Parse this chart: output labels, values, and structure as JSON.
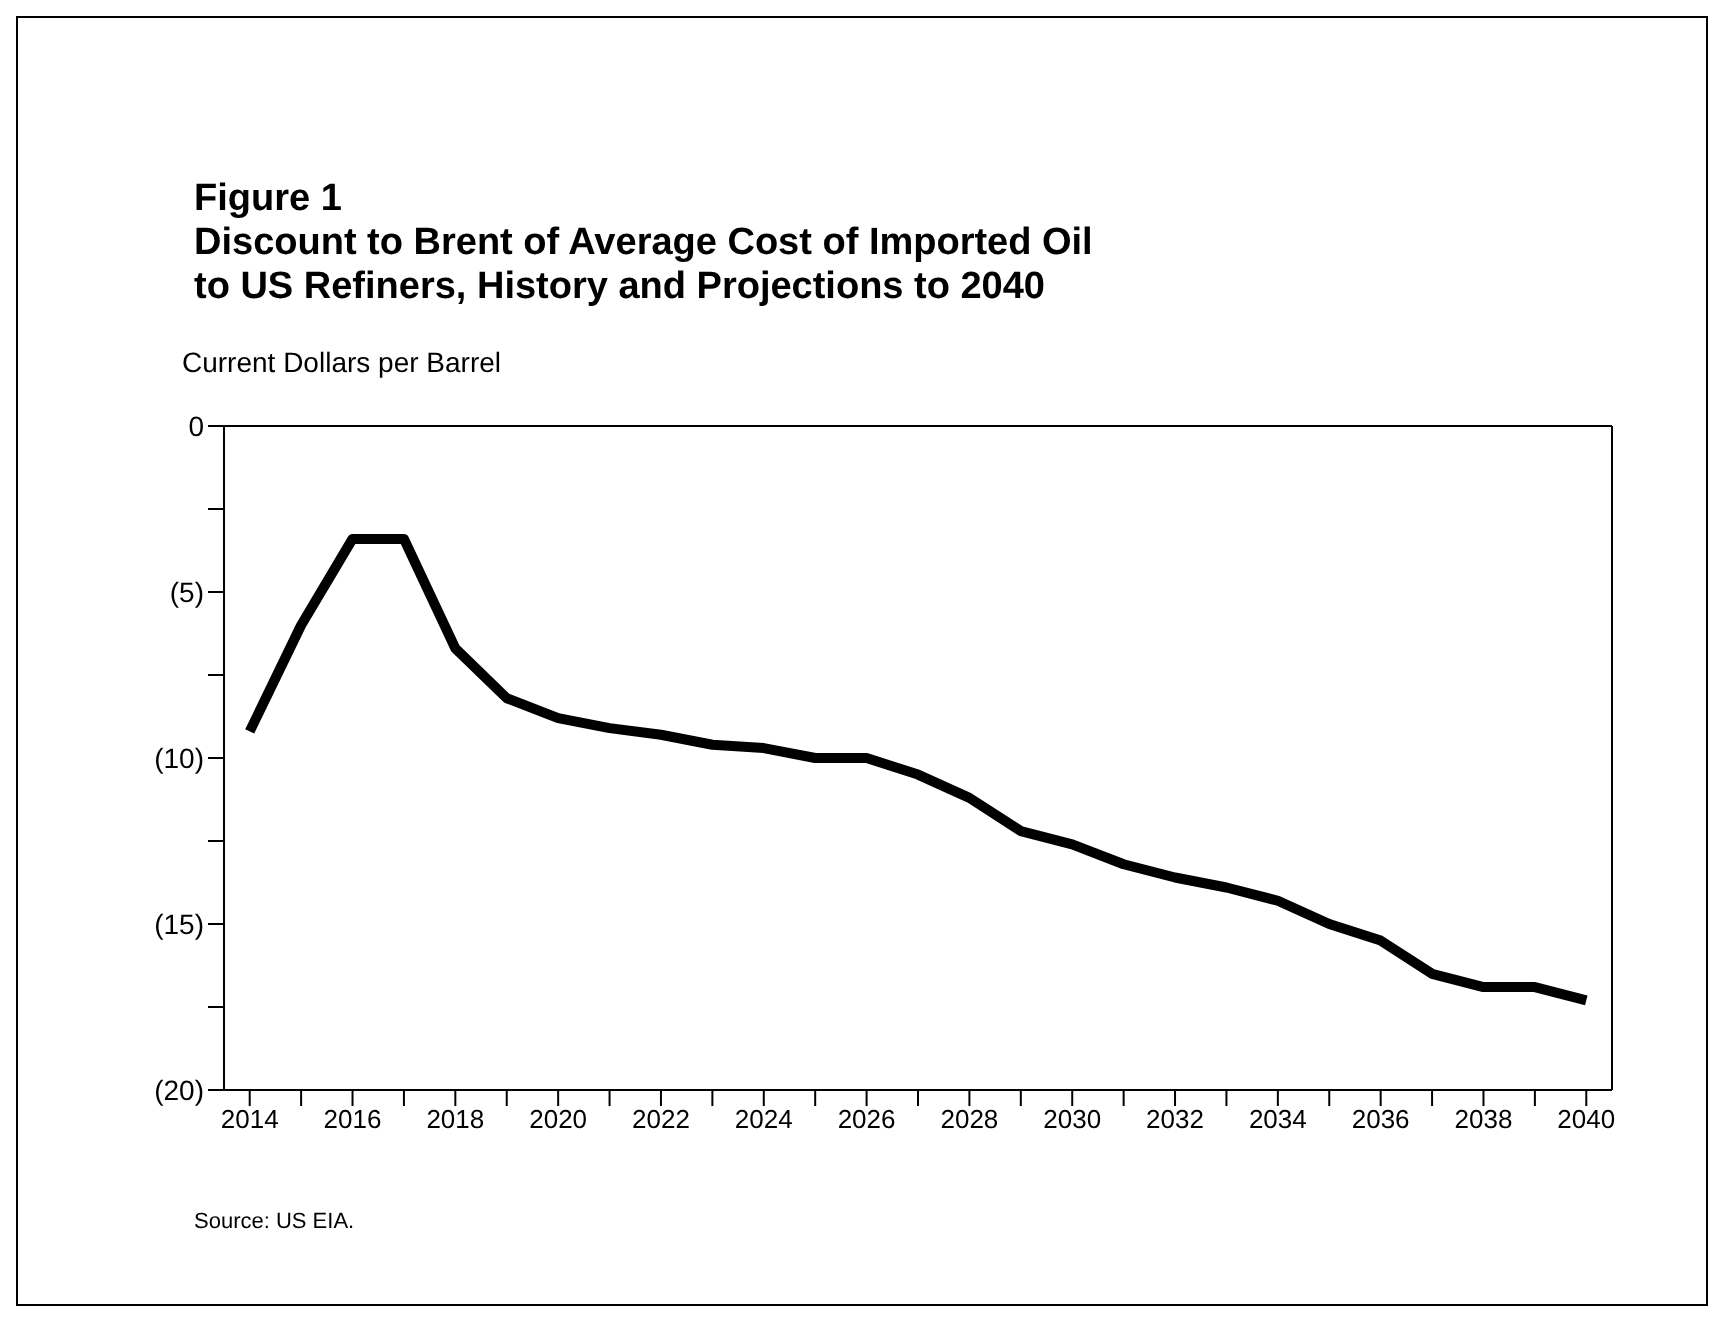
{
  "chart_data": {
    "type": "line",
    "title": "Figure 1\nDiscount to Brent of Average Cost of Imported Oil\nto US Refiners, History and Projections to 2040",
    "ylabel": "Current Dollars per Barrel",
    "annotations": [
      "Source: US EIA."
    ],
    "x": [
      2014,
      2015,
      2016,
      2017,
      2018,
      2019,
      2020,
      2021,
      2022,
      2023,
      2024,
      2025,
      2026,
      2027,
      2028,
      2029,
      2030,
      2031,
      2032,
      2033,
      2034,
      2035,
      2036,
      2037,
      2038,
      2039,
      2040
    ],
    "series": [
      {
        "color": "#000000",
        "values": [
          -9.2,
          -6.0,
          -3.4,
          -3.4,
          -6.7,
          -8.2,
          -8.8,
          -9.1,
          -9.3,
          -9.6,
          -9.7,
          -10.0,
          -10.0,
          -10.5,
          -11.2,
          -12.2,
          -12.6,
          -13.2,
          -13.6,
          -13.9,
          -14.3,
          -15.0,
          -15.5,
          -16.5,
          -16.9,
          -16.9,
          -17.3
        ]
      }
    ],
    "xlim": [
      2013.5,
      2040.5
    ],
    "xticks": [
      2014,
      {
        "value": 2015,
        "label": null
      },
      2016,
      {
        "value": 2017,
        "label": null
      },
      2018,
      {
        "value": 2019,
        "label": null
      },
      2020,
      {
        "value": 2021,
        "label": null
      },
      2022,
      {
        "value": 2023,
        "label": null
      },
      2024,
      {
        "value": 2025,
        "label": null
      },
      2026,
      {
        "value": 2027,
        "label": null
      },
      2028,
      {
        "value": 2029,
        "label": null
      },
      2030,
      {
        "value": 2031,
        "label": null
      },
      2032,
      {
        "value": 2033,
        "label": null
      },
      2034,
      {
        "value": 2035,
        "label": null
      },
      2036,
      {
        "value": 2037,
        "label": null
      },
      2038,
      {
        "value": 2039,
        "label": null
      },
      2040
    ],
    "ylim": [
      -20,
      0
    ],
    "yticks": [
      0,
      {
        "value": -2.5,
        "label": null
      },
      {
        "value": -5,
        "label": "(5)"
      },
      {
        "value": -7.5,
        "label": null
      },
      {
        "value": -10,
        "label": "(10)"
      },
      {
        "value": -12.5,
        "label": null
      },
      {
        "value": -15,
        "label": "(15)"
      },
      {
        "value": -17.5,
        "label": null
      },
      {
        "value": -20,
        "label": "(20)"
      }
    ],
    "grid": false,
    "legend": false,
    "marker": "none",
    "line_style": "solid"
  }
}
